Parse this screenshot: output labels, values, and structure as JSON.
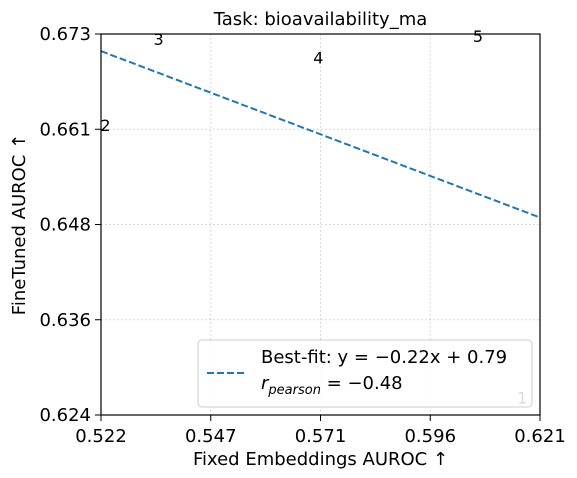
{
  "chart_data": {
    "type": "scatter",
    "title": "Task: bioavailability_ma",
    "xlabel": "Fixed Embeddings AUROC ↑",
    "ylabel": "FineTuned AUROC ↑",
    "xlim": [
      0.522,
      0.621
    ],
    "ylim": [
      0.624,
      0.673
    ],
    "xticks": [
      "0.522",
      "0.547",
      "0.571",
      "0.596",
      "0.621"
    ],
    "yticks": [
      "0.624",
      "0.636",
      "0.648",
      "0.661",
      "0.673"
    ],
    "grid": true,
    "points": [
      {
        "label": "1",
        "x": 0.617,
        "y": 0.6255
      },
      {
        "label": "2",
        "x": 0.523,
        "y": 0.6605
      },
      {
        "label": "3",
        "x": 0.535,
        "y": 0.6716
      },
      {
        "label": "4",
        "x": 0.571,
        "y": 0.6692
      },
      {
        "label": "5",
        "x": 0.607,
        "y": 0.672
      }
    ],
    "fit_line": {
      "slope": -0.22,
      "intercept": 0.79,
      "x_range": [
        0.522,
        0.621
      ],
      "y_range": [
        0.6708,
        0.6494
      ],
      "color": "#1f77b4",
      "style": "dashed"
    },
    "legend": {
      "placement": "lower-right",
      "line1": "Best-fit: y = −0.22x + 0.79",
      "line2": "r",
      "line2_sub": "pearson",
      "line2_rest": " = −0.48"
    }
  }
}
